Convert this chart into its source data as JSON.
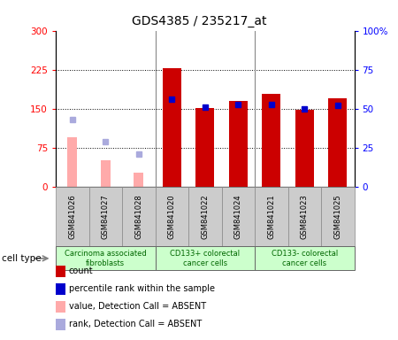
{
  "title": "GDS4385 / 235217_at",
  "samples": [
    "GSM841026",
    "GSM841027",
    "GSM841028",
    "GSM841020",
    "GSM841022",
    "GSM841024",
    "GSM841021",
    "GSM841023",
    "GSM841025"
  ],
  "count_values": [
    null,
    null,
    null,
    228,
    152,
    165,
    178,
    148,
    170
  ],
  "rank_values": [
    null,
    null,
    null,
    56,
    51,
    53,
    53,
    50,
    52
  ],
  "absent_count": [
    95,
    52,
    28,
    null,
    null,
    null,
    null,
    null,
    null
  ],
  "absent_rank": [
    43,
    29,
    21,
    null,
    null,
    null,
    null,
    null,
    null
  ],
  "count_color": "#cc0000",
  "rank_color": "#0000cc",
  "absent_count_color": "#ffaaaa",
  "absent_rank_color": "#aaaadd",
  "ylim_left": [
    0,
    300
  ],
  "ylim_right": [
    0,
    100
  ],
  "yticks_left": [
    0,
    75,
    150,
    225,
    300
  ],
  "yticks_right": [
    0,
    25,
    50,
    75,
    100
  ],
  "ytick_labels_left": [
    "0",
    "75",
    "150",
    "225",
    "300"
  ],
  "ytick_labels_right": [
    "0",
    "25",
    "50",
    "75",
    "100%"
  ],
  "cell_groups": [
    {
      "label": "Carcinoma associated\nfibroblasts",
      "start": 0,
      "end": 3
    },
    {
      "label": "CD133+ colorectal\ncancer cells",
      "start": 3,
      "end": 6
    },
    {
      "label": "CD133- colorectal\ncancer cells",
      "start": 6,
      "end": 9
    }
  ],
  "cell_type_label": "cell type",
  "legend_items": [
    {
      "label": "count",
      "color": "#cc0000"
    },
    {
      "label": "percentile rank within the sample",
      "color": "#0000cc"
    },
    {
      "label": "value, Detection Call = ABSENT",
      "color": "#ffaaaa"
    },
    {
      "label": "rank, Detection Call = ABSENT",
      "color": "#aaaadd"
    }
  ],
  "bar_width": 0.55,
  "rank_square_size": 8,
  "cell_bg": "#ccffcc",
  "xtick_bg": "#cccccc",
  "group_dividers": [
    2.5,
    5.5
  ]
}
